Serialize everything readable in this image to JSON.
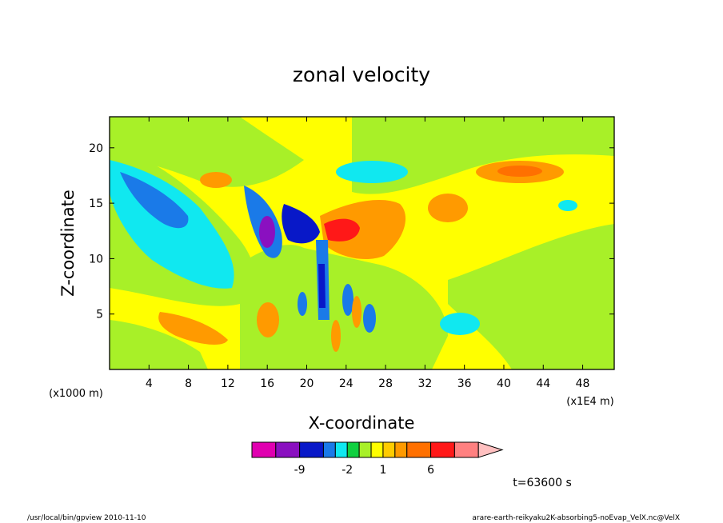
{
  "chart_data": {
    "type": "heatmap",
    "title": "zonal velocity",
    "xlabel": "X-coordinate",
    "ylabel": "Z-coordinate",
    "x_unit": "(x1E4 m)",
    "y_unit": "(x1000 m)",
    "xlim": [
      0,
      51.2
    ],
    "ylim": [
      0,
      22.8
    ],
    "x_ticks": [
      4,
      8,
      12,
      16,
      20,
      24,
      28,
      32,
      36,
      40,
      44,
      48
    ],
    "y_ticks": [
      5,
      10,
      15,
      20
    ],
    "colorbar": {
      "levels": [
        -12,
        -9,
        -6,
        -3,
        -2,
        -1,
        0,
        1,
        2,
        3,
        6,
        9,
        12
      ],
      "colors": [
        "#e000b0",
        "#8a10c0",
        "#0818c8",
        "#1a7ae8",
        "#10e8f0",
        "#10d040",
        "#a8f028",
        "#ffff00",
        "#ffcc00",
        "#ff9a00",
        "#ff7000",
        "#ff1818",
        "#ff8080",
        "#ffc0c0"
      ],
      "tick_labels": [
        "-9",
        "-2",
        "1",
        "6"
      ],
      "tick_values": [
        -9,
        -2,
        1,
        6
      ]
    },
    "annotation_time": "t=63600 s"
  },
  "footer": {
    "left": "/usr/local/bin/gpview  2010-11-10",
    "right": "arare-earth-reikyaku2K-absorbing5-noEvap_VelX.nc@VelX"
  }
}
